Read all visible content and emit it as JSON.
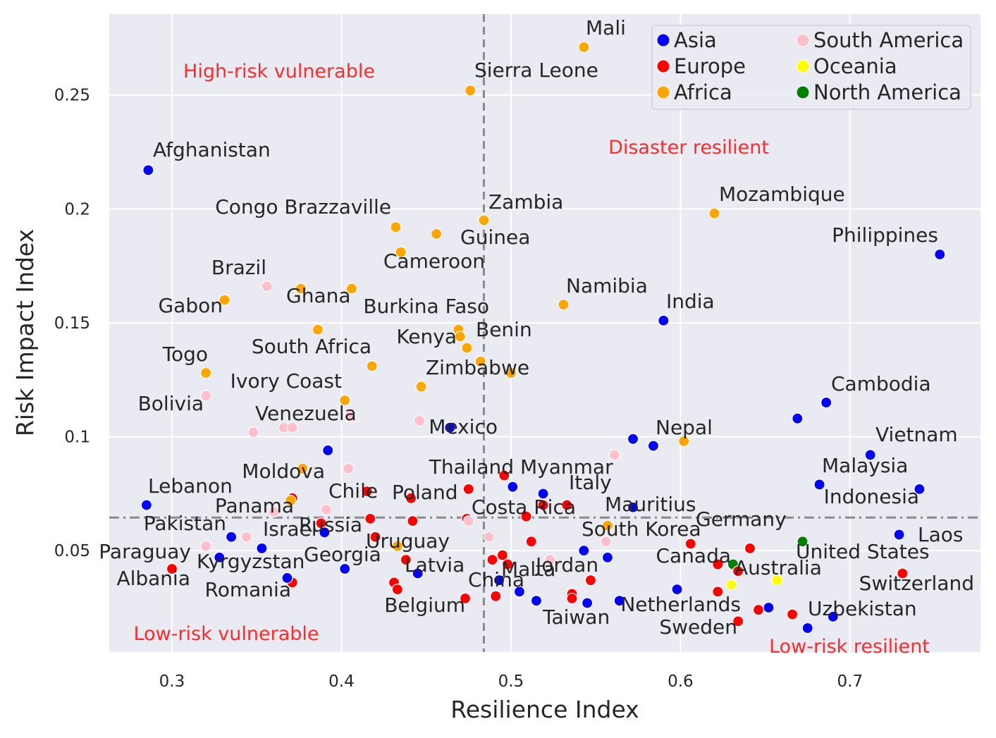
{
  "chart_data": {
    "type": "scatter",
    "xlabel": "Resilience Index",
    "ylabel": "Risk Impact Index",
    "xlim": [
      0.263,
      0.777
    ],
    "ylim": [
      0.0055,
      0.2855
    ],
    "x_ticks": [
      0.3,
      0.4,
      0.5,
      0.6,
      0.7
    ],
    "y_ticks": [
      0.05,
      0.1,
      0.15,
      0.2,
      0.25
    ],
    "grid": true,
    "legend_position": "top-right",
    "colors": {
      "Asia": "#0000ff",
      "Europe": "#ff0000",
      "Africa": "#ffa500",
      "South America": "#ffc0cb",
      "Oceania": "#ffff00",
      "North America": "#008000"
    },
    "legend": [
      "Asia",
      "Europe",
      "Africa",
      "South America",
      "Oceania",
      "North America"
    ],
    "reference_lines": {
      "vertical_x": 0.484,
      "horizontal_y": 0.0645
    },
    "quadrant_labels": [
      "High-risk vulnerable",
      "Disaster resilient",
      "Low-risk vulnerable",
      "Low-risk resilient"
    ],
    "points": [
      {
        "label": "Mali",
        "x": 0.543,
        "y": 0.271,
        "group": "Africa"
      },
      {
        "label": "Sierra Leone",
        "x": 0.476,
        "y": 0.252,
        "group": "Africa"
      },
      {
        "label": "Afghanistan",
        "x": 0.286,
        "y": 0.217,
        "group": "Asia"
      },
      {
        "label": "Zambia",
        "x": 0.484,
        "y": 0.195,
        "group": "Africa"
      },
      {
        "label": "Congo Brazzaville",
        "x": 0.432,
        "y": 0.192,
        "group": "Africa"
      },
      {
        "label": "",
        "x": 0.456,
        "y": 0.189,
        "group": "Africa"
      },
      {
        "label": "Guinea",
        "x": 0.435,
        "y": 0.181,
        "group": "Africa"
      },
      {
        "label": "Cameroon",
        "x": 0.435,
        "y": 0.181,
        "group": "Africa"
      },
      {
        "label": "Mozambique",
        "x": 0.62,
        "y": 0.198,
        "group": "Africa"
      },
      {
        "label": "Philippines",
        "x": 0.753,
        "y": 0.18,
        "group": "Asia"
      },
      {
        "label": "Brazil",
        "x": 0.356,
        "y": 0.166,
        "group": "South America"
      },
      {
        "label": "",
        "x": 0.376,
        "y": 0.165,
        "group": "Africa"
      },
      {
        "label": "Ghana",
        "x": 0.406,
        "y": 0.165,
        "group": "Africa"
      },
      {
        "label": "Gabon",
        "x": 0.331,
        "y": 0.16,
        "group": "Africa"
      },
      {
        "label": "Namibia",
        "x": 0.531,
        "y": 0.158,
        "group": "Africa"
      },
      {
        "label": "India",
        "x": 0.59,
        "y": 0.151,
        "group": "Asia"
      },
      {
        "label": "Burkina Faso",
        "x": 0.469,
        "y": 0.147,
        "group": "Africa"
      },
      {
        "label": "",
        "x": 0.386,
        "y": 0.147,
        "group": "Africa"
      },
      {
        "label": "Kenya",
        "x": 0.47,
        "y": 0.144,
        "group": "Africa"
      },
      {
        "label": "Benin",
        "x": 0.474,
        "y": 0.139,
        "group": "Africa"
      },
      {
        "label": "",
        "x": 0.482,
        "y": 0.133,
        "group": "Africa"
      },
      {
        "label": "South Africa",
        "x": 0.418,
        "y": 0.131,
        "group": "Africa"
      },
      {
        "label": "Togo",
        "x": 0.32,
        "y": 0.128,
        "group": "Africa"
      },
      {
        "label": "Zimbabwe",
        "x": 0.5,
        "y": 0.128,
        "group": "Africa"
      },
      {
        "label": "",
        "x": 0.447,
        "y": 0.122,
        "group": "Africa"
      },
      {
        "label": "Ivory Coast",
        "x": 0.402,
        "y": 0.116,
        "group": "Africa"
      },
      {
        "label": "Bolivia",
        "x": 0.32,
        "y": 0.118,
        "group": "South America"
      },
      {
        "label": "Cambodia",
        "x": 0.686,
        "y": 0.115,
        "group": "Asia"
      },
      {
        "label": "",
        "x": 0.669,
        "y": 0.108,
        "group": "Asia"
      },
      {
        "label": "",
        "x": 0.405,
        "y": 0.109,
        "group": "South America"
      },
      {
        "label": "",
        "x": 0.446,
        "y": 0.107,
        "group": "South America"
      },
      {
        "label": "Mexico",
        "x": 0.464,
        "y": 0.104,
        "group": "Asia"
      },
      {
        "label": "Venezuela",
        "x": 0.366,
        "y": 0.104,
        "group": "South America"
      },
      {
        "label": "",
        "x": 0.371,
        "y": 0.104,
        "group": "South America"
      },
      {
        "label": "",
        "x": 0.348,
        "y": 0.102,
        "group": "South America"
      },
      {
        "label": "Nepal",
        "x": 0.602,
        "y": 0.098,
        "group": "Africa"
      },
      {
        "label": "",
        "x": 0.572,
        "y": 0.099,
        "group": "Asia"
      },
      {
        "label": "",
        "x": 0.584,
        "y": 0.096,
        "group": "Asia"
      },
      {
        "label": "",
        "x": 0.561,
        "y": 0.092,
        "group": "South America"
      },
      {
        "label": "Vietnam",
        "x": 0.712,
        "y": 0.092,
        "group": "Asia"
      },
      {
        "label": "",
        "x": 0.392,
        "y": 0.094,
        "group": "Asia"
      },
      {
        "label": "Moldova",
        "x": 0.377,
        "y": 0.086,
        "group": "Africa"
      },
      {
        "label": "",
        "x": 0.404,
        "y": 0.086,
        "group": "South America"
      },
      {
        "label": "Myanmar",
        "x": 0.496,
        "y": 0.083,
        "group": "Europe"
      },
      {
        "label": "Thailand",
        "x": 0.475,
        "y": 0.077,
        "group": "Europe"
      },
      {
        "label": "",
        "x": 0.501,
        "y": 0.078,
        "group": "Asia"
      },
      {
        "label": "Italy",
        "x": 0.519,
        "y": 0.075,
        "group": "Asia"
      },
      {
        "label": "Malaysia",
        "x": 0.682,
        "y": 0.079,
        "group": "Asia"
      },
      {
        "label": "",
        "x": 0.741,
        "y": 0.077,
        "group": "Asia"
      },
      {
        "label": "Indonesia",
        "x": 0.741,
        "y": 0.077,
        "group": "Asia"
      },
      {
        "label": "Lebanon",
        "x": 0.285,
        "y": 0.07,
        "group": "Asia"
      },
      {
        "label": "Chile",
        "x": 0.415,
        "y": 0.076,
        "group": "Europe"
      },
      {
        "label": "Poland",
        "x": 0.441,
        "y": 0.073,
        "group": "Europe"
      },
      {
        "label": "",
        "x": 0.371,
        "y": 0.073,
        "group": "Europe"
      },
      {
        "label": "",
        "x": 0.37,
        "y": 0.072,
        "group": "Africa"
      },
      {
        "label": "Costa Rica",
        "x": 0.533,
        "y": 0.07,
        "group": "Europe"
      },
      {
        "label": "",
        "x": 0.519,
        "y": 0.07,
        "group": "Europe"
      },
      {
        "label": "Mauritius",
        "x": 0.572,
        "y": 0.069,
        "group": "Asia"
      },
      {
        "label": "Panama",
        "x": 0.391,
        "y": 0.068,
        "group": "South America"
      },
      {
        "label": "",
        "x": 0.36,
        "y": 0.067,
        "group": "South America"
      },
      {
        "label": "",
        "x": 0.417,
        "y": 0.064,
        "group": "Europe"
      },
      {
        "label": "",
        "x": 0.442,
        "y": 0.063,
        "group": "Europe"
      },
      {
        "label": "",
        "x": 0.474,
        "y": 0.064,
        "group": "Europe"
      },
      {
        "label": "",
        "x": 0.475,
        "y": 0.063,
        "group": "South America"
      },
      {
        "label": "",
        "x": 0.509,
        "y": 0.065,
        "group": "Europe"
      },
      {
        "label": "Pakistan",
        "x": 0.335,
        "y": 0.056,
        "group": "Asia"
      },
      {
        "label": "Russia",
        "x": 0.388,
        "y": 0.062,
        "group": "Europe"
      },
      {
        "label": "Israel",
        "x": 0.39,
        "y": 0.058,
        "group": "Asia"
      },
      {
        "label": "",
        "x": 0.344,
        "y": 0.056,
        "group": "South America"
      },
      {
        "label": "",
        "x": 0.353,
        "y": 0.051,
        "group": "Asia"
      },
      {
        "label": "",
        "x": 0.32,
        "y": 0.052,
        "group": "South America"
      },
      {
        "label": "South Korea",
        "x": 0.556,
        "y": 0.054,
        "group": "South America"
      },
      {
        "label": "",
        "x": 0.557,
        "y": 0.061,
        "group": "Africa"
      },
      {
        "label": "",
        "x": 0.512,
        "y": 0.054,
        "group": "Europe"
      },
      {
        "label": "Germany",
        "x": 0.606,
        "y": 0.053,
        "group": "Europe"
      },
      {
        "label": "",
        "x": 0.641,
        "y": 0.051,
        "group": "Europe"
      },
      {
        "label": "",
        "x": 0.672,
        "y": 0.054,
        "group": "North America"
      },
      {
        "label": "Laos",
        "x": 0.729,
        "y": 0.057,
        "group": "Asia"
      },
      {
        "label": "",
        "x": 0.42,
        "y": 0.056,
        "group": "Europe"
      },
      {
        "label": "",
        "x": 0.487,
        "y": 0.056,
        "group": "South America"
      },
      {
        "label": "Uruguay",
        "x": 0.433,
        "y": 0.052,
        "group": "Africa"
      },
      {
        "label": "",
        "x": 0.438,
        "y": 0.046,
        "group": "Europe"
      },
      {
        "label": "",
        "x": 0.495,
        "y": 0.048,
        "group": "Europe"
      },
      {
        "label": "",
        "x": 0.489,
        "y": 0.046,
        "group": "Europe"
      },
      {
        "label": "",
        "x": 0.498,
        "y": 0.044,
        "group": "Europe"
      },
      {
        "label": "",
        "x": 0.523,
        "y": 0.046,
        "group": "South America"
      },
      {
        "label": "",
        "x": 0.543,
        "y": 0.05,
        "group": "Asia"
      },
      {
        "label": "",
        "x": 0.557,
        "y": 0.047,
        "group": "Asia"
      },
      {
        "label": "Canada",
        "x": 0.622,
        "y": 0.044,
        "group": "Europe"
      },
      {
        "label": "",
        "x": 0.631,
        "y": 0.044,
        "group": "North America"
      },
      {
        "label": "Australia",
        "x": 0.634,
        "y": 0.041,
        "group": "Europe"
      },
      {
        "label": "",
        "x": 0.657,
        "y": 0.037,
        "group": "Oceania"
      },
      {
        "label": "",
        "x": 0.63,
        "y": 0.035,
        "group": "Oceania"
      },
      {
        "label": "United States",
        "x": 0.672,
        "y": 0.054,
        "group": "North America"
      },
      {
        "label": "Switzerland",
        "x": 0.731,
        "y": 0.04,
        "group": "Europe"
      },
      {
        "label": "Paraguay",
        "x": 0.3,
        "y": 0.042,
        "group": "Europe"
      },
      {
        "label": "Kyrgyzstan",
        "x": 0.328,
        "y": 0.047,
        "group": "Asia"
      },
      {
        "label": "Albania",
        "x": 0.3,
        "y": 0.042,
        "group": "Europe"
      },
      {
        "label": "Romania",
        "x": 0.371,
        "y": 0.036,
        "group": "Europe"
      },
      {
        "label": "",
        "x": 0.368,
        "y": 0.038,
        "group": "Asia"
      },
      {
        "label": "Georgia",
        "x": 0.402,
        "y": 0.042,
        "group": "Asia"
      },
      {
        "label": "Latvia",
        "x": 0.445,
        "y": 0.04,
        "group": "Asia"
      },
      {
        "label": "",
        "x": 0.431,
        "y": 0.036,
        "group": "Europe"
      },
      {
        "label": "",
        "x": 0.433,
        "y": 0.033,
        "group": "Europe"
      },
      {
        "label": "Malta",
        "x": 0.493,
        "y": 0.037,
        "group": "Asia"
      },
      {
        "label": "",
        "x": 0.505,
        "y": 0.032,
        "group": "Asia"
      },
      {
        "label": "Jordan",
        "x": 0.547,
        "y": 0.037,
        "group": "Europe"
      },
      {
        "label": "China",
        "x": 0.473,
        "y": 0.029,
        "group": "Europe"
      },
      {
        "label": "",
        "x": 0.491,
        "y": 0.03,
        "group": "Europe"
      },
      {
        "label": "Belgium",
        "x": 0.473,
        "y": 0.029,
        "group": "Europe"
      },
      {
        "label": "",
        "x": 0.515,
        "y": 0.028,
        "group": "Asia"
      },
      {
        "label": "",
        "x": 0.536,
        "y": 0.031,
        "group": "Europe"
      },
      {
        "label": "",
        "x": 0.536,
        "y": 0.029,
        "group": "Europe"
      },
      {
        "label": "Taiwan",
        "x": 0.545,
        "y": 0.027,
        "group": "Asia"
      },
      {
        "label": "",
        "x": 0.564,
        "y": 0.028,
        "group": "Asia"
      },
      {
        "label": "",
        "x": 0.598,
        "y": 0.033,
        "group": "Asia"
      },
      {
        "label": "",
        "x": 0.622,
        "y": 0.032,
        "group": "Europe"
      },
      {
        "label": "Netherlands",
        "x": 0.646,
        "y": 0.024,
        "group": "Europe"
      },
      {
        "label": "",
        "x": 0.652,
        "y": 0.025,
        "group": "Asia"
      },
      {
        "label": "",
        "x": 0.666,
        "y": 0.022,
        "group": "Europe"
      },
      {
        "label": "Sweden",
        "x": 0.634,
        "y": 0.019,
        "group": "Europe"
      },
      {
        "label": "Uzbekistan",
        "x": 0.69,
        "y": 0.021,
        "group": "Asia"
      },
      {
        "label": "",
        "x": 0.675,
        "y": 0.016,
        "group": "Asia"
      }
    ]
  }
}
